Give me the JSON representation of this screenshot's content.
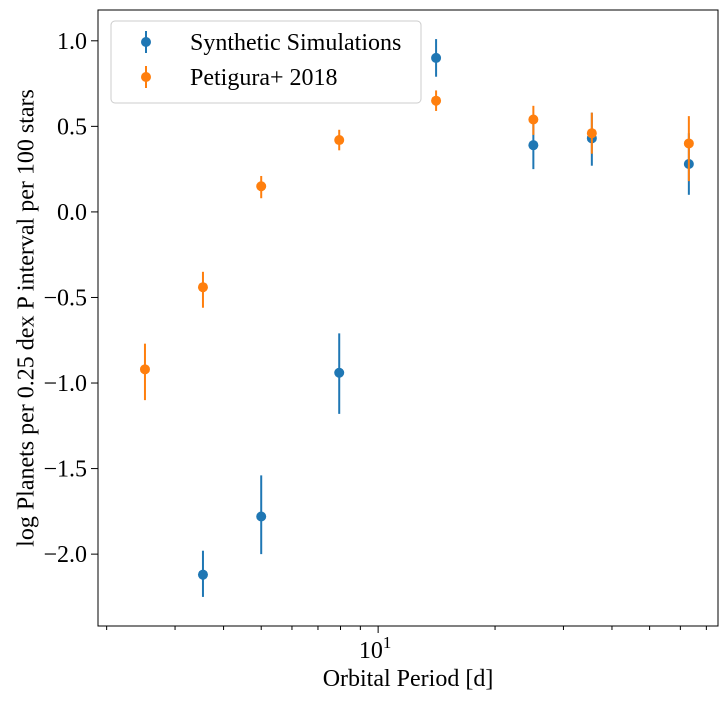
{
  "chart_data": {
    "type": "scatter",
    "title": "",
    "xlabel": "Orbital Period [d]",
    "ylabel": "log Planets per 0.25 dex P interval per 100 stars",
    "x_scale": "log",
    "xlim": [
      1.9,
      75
    ],
    "ylim": [
      -2.42,
      1.18
    ],
    "x_major_ticks": [
      {
        "value": 10,
        "base": "10",
        "exp": "1"
      }
    ],
    "x_minor_ticks": [
      2,
      3,
      4,
      5,
      6,
      7,
      8,
      9,
      20,
      30,
      40,
      50,
      60,
      70
    ],
    "y_ticks": [
      {
        "value": -2.0,
        "label": "−2.0"
      },
      {
        "value": -1.5,
        "label": "−1.5"
      },
      {
        "value": -1.0,
        "label": "−1.0"
      },
      {
        "value": -0.5,
        "label": "−0.5"
      },
      {
        "value": 0.0,
        "label": "0.0"
      },
      {
        "value": 0.5,
        "label": "0.5"
      },
      {
        "value": 1.0,
        "label": "1.0"
      }
    ],
    "grid": false,
    "legend_position": "top-left",
    "series": [
      {
        "name": "Synthetic Simulations",
        "color": "#1f77b4",
        "points": [
          {
            "x": 3.54,
            "y": -2.12,
            "ylow": -2.25,
            "yhigh": -1.98
          },
          {
            "x": 5.0,
            "y": -1.78,
            "ylow": -2.0,
            "yhigh": -1.54
          },
          {
            "x": 7.94,
            "y": -0.94,
            "ylow": -1.18,
            "yhigh": -0.71
          },
          {
            "x": 14.1,
            "y": 0.9,
            "ylow": 0.79,
            "yhigh": 1.01
          },
          {
            "x": 25.1,
            "y": 0.39,
            "ylow": 0.25,
            "yhigh": 0.53
          },
          {
            "x": 35.5,
            "y": 0.43,
            "ylow": 0.27,
            "yhigh": 0.58
          },
          {
            "x": 63.1,
            "y": 0.28,
            "ylow": 0.1,
            "yhigh": 0.46
          }
        ]
      },
      {
        "name": "Petigura+ 2018",
        "color": "#ff7f0e",
        "points": [
          {
            "x": 2.51,
            "y": -0.92,
            "ylow": -1.1,
            "yhigh": -0.77
          },
          {
            "x": 3.54,
            "y": -0.44,
            "ylow": -0.56,
            "yhigh": -0.35
          },
          {
            "x": 5.0,
            "y": 0.15,
            "ylow": 0.08,
            "yhigh": 0.21
          },
          {
            "x": 7.94,
            "y": 0.42,
            "ylow": 0.36,
            "yhigh": 0.48
          },
          {
            "x": 14.1,
            "y": 0.65,
            "ylow": 0.59,
            "yhigh": 0.71
          },
          {
            "x": 25.1,
            "y": 0.54,
            "ylow": 0.45,
            "yhigh": 0.62
          },
          {
            "x": 35.5,
            "y": 0.46,
            "ylow": 0.34,
            "yhigh": 0.58
          },
          {
            "x": 63.1,
            "y": 0.4,
            "ylow": 0.18,
            "yhigh": 0.56
          }
        ]
      }
    ]
  }
}
